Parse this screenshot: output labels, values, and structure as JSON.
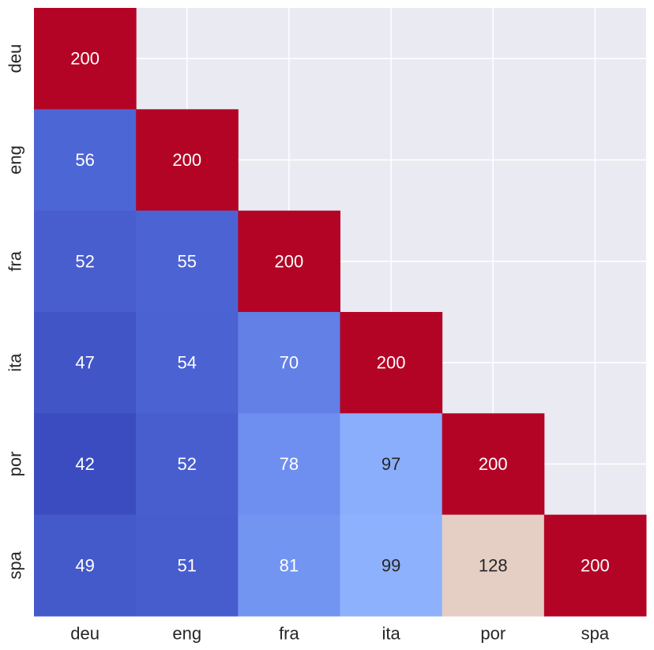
{
  "chart_data": {
    "type": "heatmap",
    "title": "",
    "xlabel": "",
    "ylabel": "",
    "x_categories": [
      "deu",
      "eng",
      "fra",
      "ita",
      "por",
      "spa"
    ],
    "y_categories": [
      "deu",
      "eng",
      "fra",
      "ita",
      "por",
      "spa"
    ],
    "mask": "upper-triangle",
    "values": [
      [
        200,
        null,
        null,
        null,
        null,
        null
      ],
      [
        56,
        200,
        null,
        null,
        null,
        null
      ],
      [
        52,
        55,
        200,
        null,
        null,
        null
      ],
      [
        47,
        54,
        70,
        200,
        null,
        null
      ],
      [
        42,
        52,
        78,
        97,
        200,
        null
      ],
      [
        49,
        51,
        81,
        99,
        128,
        200
      ]
    ],
    "colormap": "coolwarm",
    "value_range": [
      42,
      200
    ],
    "background_color": "#EAEAF2",
    "grid": true,
    "colorbar": false
  }
}
